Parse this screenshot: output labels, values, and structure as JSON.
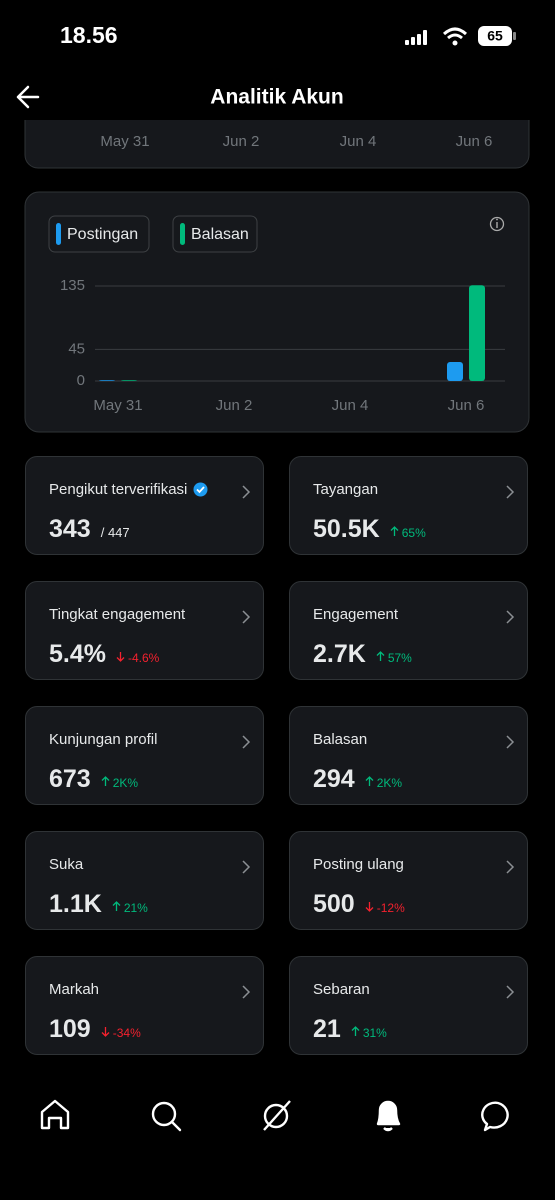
{
  "status_bar": {
    "time": "18.56",
    "battery": "65"
  },
  "header": {
    "title": "Analitik Akun"
  },
  "top_strip": {
    "labels": [
      "May 31",
      "Jun 2",
      "Jun 4",
      "Jun 6"
    ]
  },
  "chart_data": {
    "type": "bar",
    "categories": [
      "May 31",
      null,
      "Jun 2",
      null,
      "Jun 4",
      null,
      "Jun 6"
    ],
    "series": [
      {
        "name": "Postingan",
        "color": "#1d9bf0",
        "values": [
          1,
          0,
          0,
          0,
          0,
          0,
          27
        ]
      },
      {
        "name": "Balasan",
        "color": "#00ba7c",
        "values": [
          1,
          0,
          0,
          0,
          0,
          0,
          136
        ]
      }
    ],
    "ylim": [
      0,
      140
    ],
    "yticks": [
      0,
      45,
      135
    ],
    "grid": true
  },
  "metrics": [
    {
      "label": "Pengikut terverifikasi",
      "value": "343",
      "total": "/ 447",
      "verified": true
    },
    {
      "label": "Tayangan",
      "value": "50.5K",
      "change": "65%",
      "direction": "up"
    },
    {
      "label": "Tingkat engagement",
      "value": "5.4%",
      "change": "-4.6%",
      "direction": "down"
    },
    {
      "label": "Engagement",
      "value": "2.7K",
      "change": "57%",
      "direction": "up"
    },
    {
      "label": "Kunjungan profil",
      "value": "673",
      "change": "2K%",
      "direction": "up"
    },
    {
      "label": "Balasan",
      "value": "294",
      "change": "2K%",
      "direction": "up"
    },
    {
      "label": "Suka",
      "value": "1.1K",
      "change": "21%",
      "direction": "up"
    },
    {
      "label": "Posting ulang",
      "value": "500",
      "change": "-12%",
      "direction": "down"
    },
    {
      "label": "Markah",
      "value": "109",
      "change": "-34%",
      "direction": "down"
    },
    {
      "label": "Sebaran",
      "value": "21",
      "change": "31%",
      "direction": "up"
    }
  ]
}
